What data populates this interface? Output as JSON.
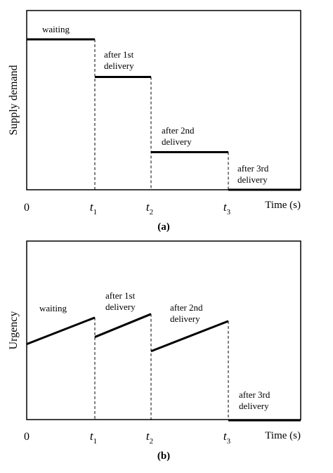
{
  "chart_data": [
    {
      "type": "line",
      "caption": "(a)",
      "ylabel": "Supply demand",
      "xlabel": "Time (s)",
      "x_origin_label": "0",
      "x_ticks": [
        {
          "base": "t",
          "sub": "1"
        },
        {
          "base": "t",
          "sub": "2"
        },
        {
          "base": "t",
          "sub": "3"
        }
      ],
      "ylim": [
        0,
        1
      ],
      "segments": [
        {
          "label_lines": [
            "waiting"
          ],
          "x_start": 0,
          "x_end": 1,
          "y_start": 1.0,
          "y_end": 1.0
        },
        {
          "label_lines": [
            "after 1st",
            "delivery"
          ],
          "x_start": 1,
          "x_end": 2,
          "y_start": 0.75,
          "y_end": 0.75
        },
        {
          "label_lines": [
            "after 2nd",
            "delivery"
          ],
          "x_start": 2,
          "x_end": 3.4,
          "y_start": 0.25,
          "y_end": 0.25
        },
        {
          "label_lines": [
            "after 3rd",
            "delivery"
          ],
          "x_start": 3.4,
          "x_end": 4.7,
          "y_start": 0.0,
          "y_end": 0.0
        }
      ]
    },
    {
      "type": "line",
      "caption": "(b)",
      "ylabel": "Urgency",
      "xlabel": "Time (s)",
      "x_origin_label": "0",
      "x_ticks": [
        {
          "base": "t",
          "sub": "1"
        },
        {
          "base": "t",
          "sub": "2"
        },
        {
          "base": "t",
          "sub": "3"
        }
      ],
      "ylim": [
        0,
        1
      ],
      "segments": [
        {
          "label_lines": [
            "waiting"
          ],
          "x_start": 0,
          "x_end": 1,
          "y_start": 0.43,
          "y_end": 0.58
        },
        {
          "label_lines": [
            "after 1st",
            "delivery"
          ],
          "x_start": 1,
          "x_end": 2,
          "y_start": 0.47,
          "y_end": 0.6
        },
        {
          "label_lines": [
            "after 2nd",
            "delivery"
          ],
          "x_start": 2,
          "x_end": 3.4,
          "y_start": 0.39,
          "y_end": 0.56
        },
        {
          "label_lines": [
            "after 3rd",
            "delivery"
          ],
          "x_start": 3.4,
          "x_end": 4.7,
          "y_start": 0.0,
          "y_end": 0.0
        }
      ]
    }
  ]
}
